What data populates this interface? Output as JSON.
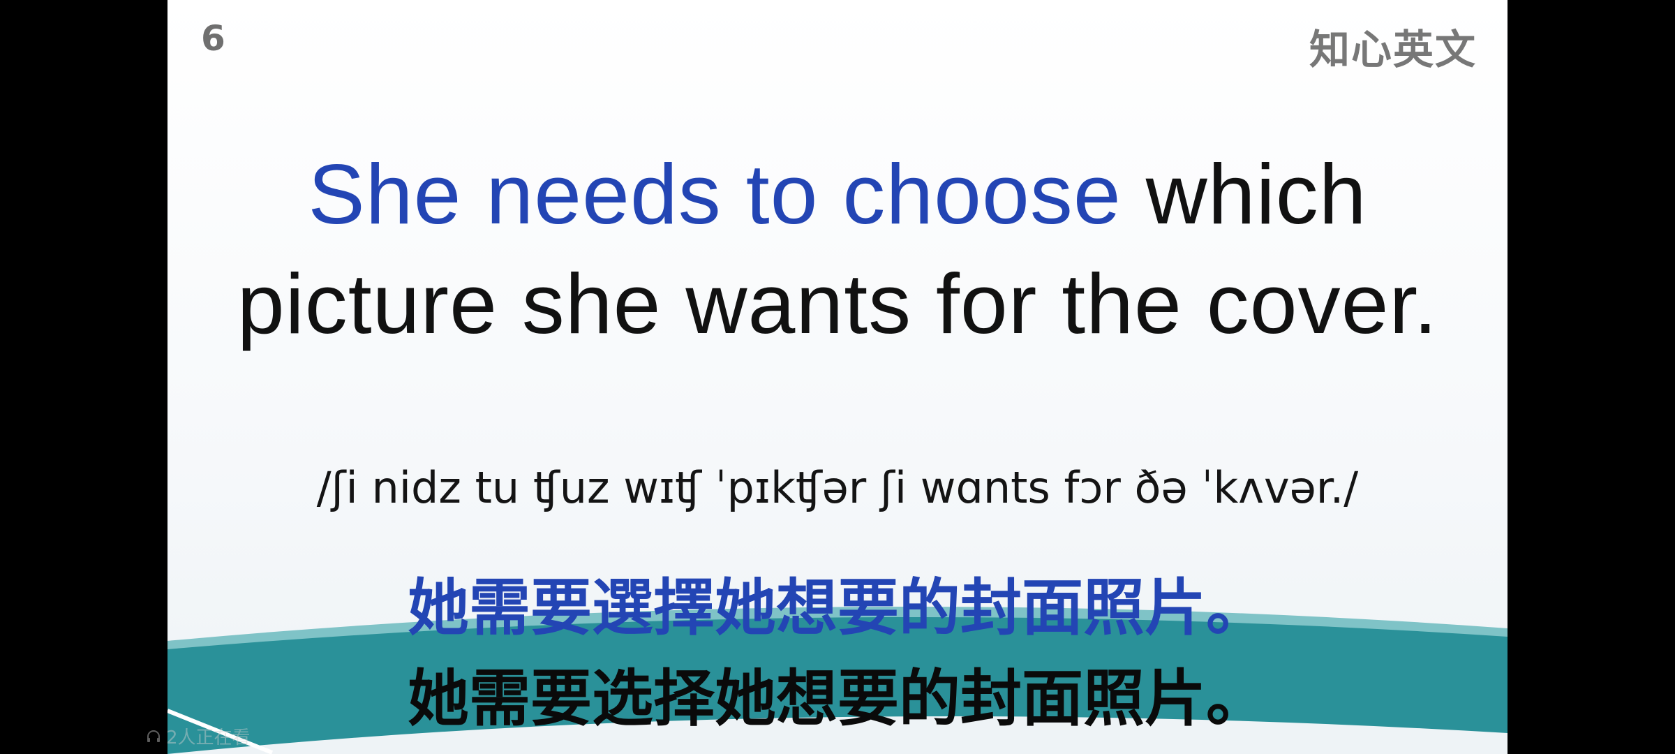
{
  "slide": {
    "number": "6",
    "brand": "知心英文",
    "sentence": {
      "highlight": "She needs to choose",
      "rest": "which picture she wants for the cover."
    },
    "ipa": "/ʃi nidz tu ʧuz wɪʧ ˈpɪkʧər ʃi wɑnts fɔr ðə ˈkʌvər./",
    "translation_traditional": "她需要選擇她想要的封面照片。",
    "translation_simplified": "她需要选择她想要的封面照片。"
  },
  "overlay": {
    "viewers_text": "2人正在看",
    "viewers_icon": "headphones-icon"
  },
  "colors": {
    "highlight_blue": "#2345b4",
    "teal_wave": "#2a9199",
    "letterbox": "#000000"
  }
}
